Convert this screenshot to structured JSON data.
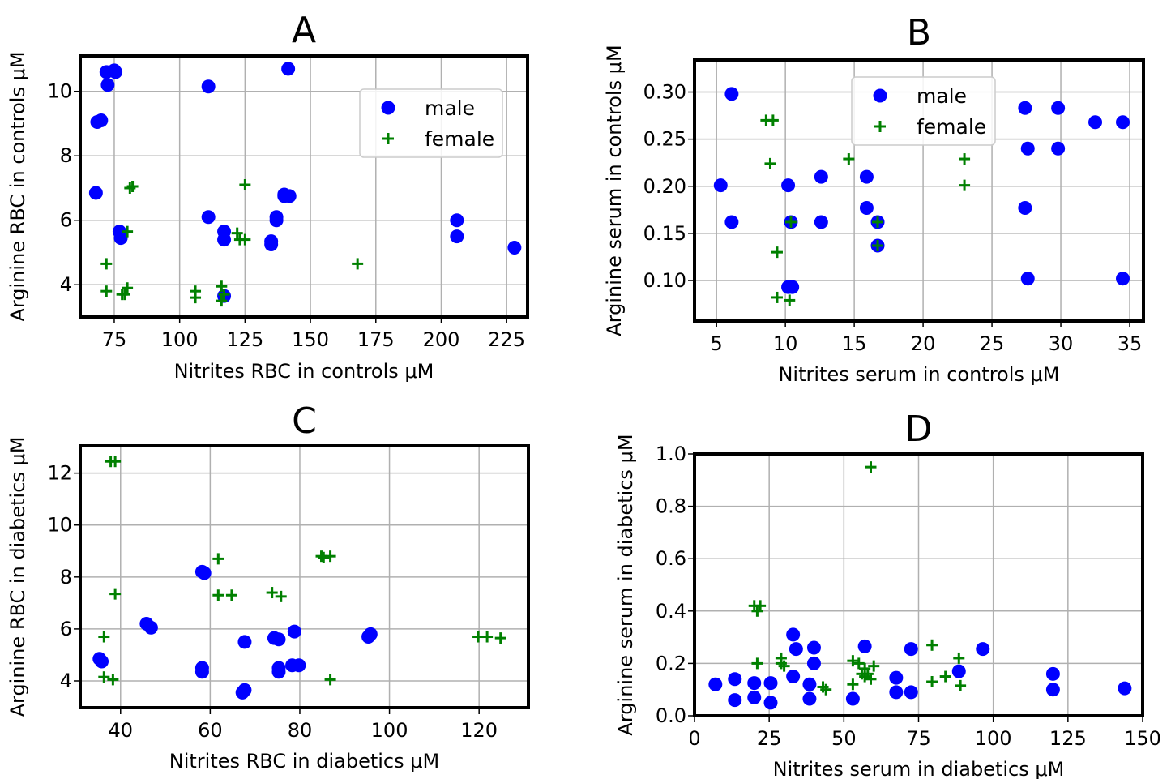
{
  "colors": {
    "male": "#0000ff",
    "female": "#008000"
  },
  "chart_data": [
    {
      "type": "scatter",
      "title": "A",
      "xlabel": "Nitrites RBC in controls μM",
      "ylabel": "Arginine RBC in controls μM",
      "xlim": [
        62,
        233
      ],
      "ylim": [
        3.0,
        11.1
      ],
      "xticks": [
        75,
        100,
        125,
        150,
        175,
        200,
        225
      ],
      "yticks": [
        4,
        6,
        8,
        10
      ],
      "grid": true,
      "legend": {
        "placement": "top-right",
        "entries": [
          "male",
          "female"
        ]
      },
      "series": [
        {
          "name": "male",
          "marker": "circle",
          "points": [
            [
              68,
              6.85
            ],
            [
              68.5,
              9.05
            ],
            [
              70,
              9.1
            ],
            [
              72,
              10.6
            ],
            [
              72.5,
              10.2
            ],
            [
              75,
              10.65
            ],
            [
              75.5,
              10.6
            ],
            [
              77,
              5.65
            ],
            [
              77.5,
              5.45
            ],
            [
              111,
              10.15
            ],
            [
              111,
              6.1
            ],
            [
              117,
              5.65
            ],
            [
              117,
              5.4
            ],
            [
              117,
              3.65
            ],
            [
              135,
              5.35
            ],
            [
              135,
              5.25
            ],
            [
              137,
              6.1
            ],
            [
              137,
              6.0
            ],
            [
              140,
              6.8
            ],
            [
              140,
              6.75
            ],
            [
              142,
              6.75
            ],
            [
              141.5,
              10.7
            ],
            [
              206,
              6.0
            ],
            [
              206,
              5.5
            ],
            [
              228,
              5.15
            ]
          ]
        },
        {
          "name": "female",
          "marker": "plus",
          "points": [
            [
              72,
              4.65
            ],
            [
              72,
              3.8
            ],
            [
              78,
              3.7
            ],
            [
              79,
              3.7
            ],
            [
              80,
              3.9
            ],
            [
              80,
              5.65
            ],
            [
              81,
              7.0
            ],
            [
              82,
              7.05
            ],
            [
              106,
              3.8
            ],
            [
              106,
              3.6
            ],
            [
              116,
              3.95
            ],
            [
              116,
              3.5
            ],
            [
              117,
              3.7
            ],
            [
              122,
              5.6
            ],
            [
              123,
              5.4
            ],
            [
              125,
              7.1
            ],
            [
              125,
              5.4
            ],
            [
              168,
              4.65
            ]
          ]
        }
      ]
    },
    {
      "type": "scatter",
      "title": "B",
      "xlabel": "Nitrites serum in controls μM",
      "ylabel": "Arginine serum in controls μM",
      "xlim": [
        3.4,
        36.0
      ],
      "ylim": [
        0.057,
        0.334
      ],
      "xticks": [
        5,
        10,
        15,
        20,
        25,
        30,
        35
      ],
      "yticks": [
        0.1,
        0.15,
        0.2,
        0.25,
        0.3
      ],
      "ytick_labels": [
        "0.10",
        "0.15",
        "0.20",
        "0.25",
        "0.30"
      ],
      "grid": true,
      "legend": {
        "placement": "upper center",
        "entries": [
          "male",
          "female"
        ]
      },
      "series": [
        {
          "name": "male",
          "marker": "circle",
          "points": [
            [
              5.3,
              0.201
            ],
            [
              6.1,
              0.298
            ],
            [
              6.1,
              0.162
            ],
            [
              10.2,
              0.201
            ],
            [
              10.4,
              0.162
            ],
            [
              10.2,
              0.093
            ],
            [
              10.5,
              0.093
            ],
            [
              12.6,
              0.162
            ],
            [
              12.6,
              0.21
            ],
            [
              15.9,
              0.21
            ],
            [
              15.9,
              0.177
            ],
            [
              16.7,
              0.162
            ],
            [
              16.7,
              0.137
            ],
            [
              27.4,
              0.283
            ],
            [
              27.6,
              0.24
            ],
            [
              27.4,
              0.177
            ],
            [
              27.6,
              0.102
            ],
            [
              29.8,
              0.283
            ],
            [
              29.8,
              0.24
            ],
            [
              32.5,
              0.268
            ],
            [
              34.5,
              0.268
            ],
            [
              34.5,
              0.102
            ]
          ]
        },
        {
          "name": "female",
          "marker": "plus",
          "points": [
            [
              8.6,
              0.27
            ],
            [
              9.1,
              0.27
            ],
            [
              8.9,
              0.224
            ],
            [
              9.4,
              0.13
            ],
            [
              9.4,
              0.082
            ],
            [
              10.3,
              0.079
            ],
            [
              10.4,
              0.162
            ],
            [
              14.6,
              0.229
            ],
            [
              16.7,
              0.162
            ],
            [
              16.7,
              0.137
            ],
            [
              23.0,
              0.229
            ],
            [
              23.0,
              0.201
            ]
          ]
        }
      ]
    },
    {
      "type": "scatter",
      "title": "C",
      "xlabel": "Nitrites RBC in diabetics μM",
      "ylabel": "Arginine RBC in diabetics μM",
      "xlim": [
        31,
        131
      ],
      "ylim": [
        2.97,
        13.05
      ],
      "xticks": [
        40,
        60,
        80,
        100,
        120
      ],
      "yticks": [
        4,
        6,
        8,
        10,
        12
      ],
      "grid": true,
      "series": [
        {
          "name": "male",
          "marker": "circle",
          "points": [
            [
              35.3,
              4.85
            ],
            [
              35.8,
              4.75
            ],
            [
              45.8,
              6.2
            ],
            [
              46.8,
              6.05
            ],
            [
              58.2,
              8.2
            ],
            [
              58.7,
              8.15
            ],
            [
              58.2,
              4.5
            ],
            [
              58.2,
              4.35
            ],
            [
              67.2,
              3.55
            ],
            [
              67.7,
              3.65
            ],
            [
              67.7,
              5.5
            ],
            [
              74.3,
              5.65
            ],
            [
              75.3,
              5.6
            ],
            [
              75.3,
              4.5
            ],
            [
              75.3,
              4.35
            ],
            [
              78.3,
              4.6
            ],
            [
              78.8,
              5.9
            ],
            [
              79.8,
              4.6
            ],
            [
              95.3,
              5.7
            ],
            [
              95.8,
              5.8
            ]
          ]
        },
        {
          "name": "female",
          "marker": "plus",
          "points": [
            [
              36.3,
              5.7
            ],
            [
              36.3,
              4.15
            ],
            [
              38.3,
              4.05
            ],
            [
              37.8,
              12.45
            ],
            [
              38.8,
              12.45
            ],
            [
              38.8,
              7.35
            ],
            [
              61.8,
              8.7
            ],
            [
              61.8,
              7.3
            ],
            [
              64.8,
              7.3
            ],
            [
              73.8,
              7.4
            ],
            [
              75.8,
              7.25
            ],
            [
              84.8,
              8.8
            ],
            [
              85.3,
              8.75
            ],
            [
              86.8,
              8.8
            ],
            [
              86.8,
              4.05
            ],
            [
              119.8,
              5.7
            ],
            [
              121.8,
              5.7
            ],
            [
              124.8,
              5.65
            ]
          ]
        }
      ]
    },
    {
      "type": "scatter",
      "title": "D",
      "xlabel": "Nitrites serum in diabetics  μM",
      "ylabel": "Arginine serum in diabetics μM",
      "xlim": [
        0,
        150
      ],
      "ylim": [
        0.0,
        1.0
      ],
      "xticks": [
        0,
        25,
        50,
        75,
        100,
        125,
        150
      ],
      "yticks": [
        0.0,
        0.2,
        0.4,
        0.6,
        0.8,
        1.0
      ],
      "ytick_labels": [
        "0.0",
        "0.2",
        "0.4",
        "0.6",
        "0.8",
        "1.0"
      ],
      "grid": true,
      "series": [
        {
          "name": "male",
          "marker": "circle",
          "points": [
            [
              7,
              0.12
            ],
            [
              13.5,
              0.06
            ],
            [
              13.5,
              0.14
            ],
            [
              20,
              0.125
            ],
            [
              20,
              0.07
            ],
            [
              25.5,
              0.05
            ],
            [
              25.5,
              0.125
            ],
            [
              33,
              0.31
            ],
            [
              33,
              0.15
            ],
            [
              34,
              0.255
            ],
            [
              38.5,
              0.065
            ],
            [
              38.5,
              0.12
            ],
            [
              40,
              0.2
            ],
            [
              40,
              0.26
            ],
            [
              53,
              0.065
            ],
            [
              57,
              0.265
            ],
            [
              67.5,
              0.145
            ],
            [
              67.5,
              0.09
            ],
            [
              72.5,
              0.09
            ],
            [
              72.5,
              0.255
            ],
            [
              88.5,
              0.17
            ],
            [
              96.5,
              0.255
            ],
            [
              120,
              0.1
            ],
            [
              120,
              0.16
            ],
            [
              144,
              0.105
            ]
          ]
        },
        {
          "name": "female",
          "marker": "plus",
          "points": [
            [
              20,
              0.42
            ],
            [
              21,
              0.4
            ],
            [
              22,
              0.42
            ],
            [
              21,
              0.2
            ],
            [
              29,
              0.2
            ],
            [
              29,
              0.22
            ],
            [
              30,
              0.19
            ],
            [
              43,
              0.11
            ],
            [
              44,
              0.1
            ],
            [
              53,
              0.12
            ],
            [
              53,
              0.21
            ],
            [
              55,
              0.2
            ],
            [
              56,
              0.16
            ],
            [
              57,
              0.18
            ],
            [
              57,
              0.15
            ],
            [
              58,
              0.16
            ],
            [
              59,
              0.14
            ],
            [
              60,
              0.19
            ],
            [
              59,
              0.95
            ],
            [
              79.5,
              0.27
            ],
            [
              79.5,
              0.13
            ],
            [
              84,
              0.15
            ],
            [
              88.5,
              0.22
            ],
            [
              89,
              0.115
            ]
          ]
        }
      ]
    }
  ]
}
